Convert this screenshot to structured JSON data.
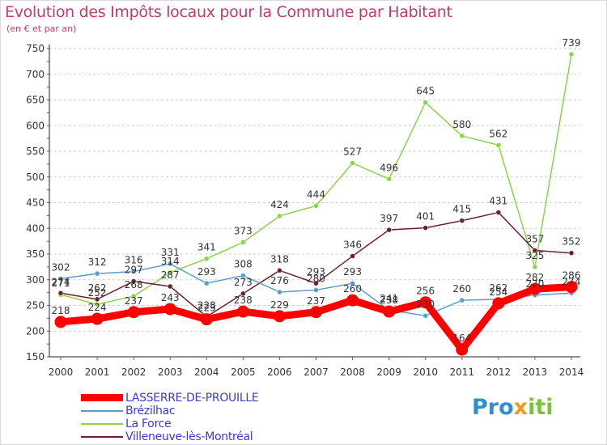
{
  "chart_data": {
    "type": "line",
    "title": "Evolution des Impôts locaux pour la Commune par Habitant",
    "subtitle": "(en € et par an)",
    "xlabel": "",
    "ylabel": "",
    "x": [
      "2000",
      "2001",
      "2002",
      "2003",
      "2004",
      "2005",
      "2006",
      "2007",
      "2008",
      "2009",
      "2010",
      "2011",
      "2012",
      "2013",
      "2014"
    ],
    "yticks": [
      "150",
      "200",
      "250",
      "300",
      "350",
      "400",
      "450",
      "500",
      "550",
      "600",
      "650",
      "700",
      "750"
    ],
    "ylim": [
      150,
      750
    ],
    "grid": "horizontal dashed",
    "legend_position": "bottom-left",
    "series": [
      {
        "name": "LASSERRE-DE-PROUILLE",
        "color": "#ff0000",
        "values": [
          218,
          224,
          237,
          243,
          223,
          238,
          229,
          237,
          260,
          238,
          256,
          164,
          254,
          282,
          286
        ],
        "labels": [
          "218",
          "224",
          "237",
          "243",
          "223",
          "238",
          "229",
          "237",
          "260",
          "238",
          "256",
          "164",
          "254",
          "282",
          "286"
        ]
      },
      {
        "name": "Brézilhac",
        "color": "#5b9bd0",
        "values": [
          302,
          312,
          316,
          331,
          293,
          308,
          276,
          280,
          293,
          241,
          230,
          260,
          262,
          270,
          274
        ],
        "labels": [
          "302",
          "312",
          "316",
          "331",
          "293",
          "308",
          "276",
          "280",
          "293",
          "241",
          "230",
          "260",
          "262",
          "270",
          "274"
        ]
      },
      {
        "name": "La Force",
        "color": "#8ad44a",
        "values": [
          271,
          252,
          268,
          314,
          341,
          373,
          424,
          444,
          527,
          496,
          645,
          580,
          562,
          325,
          739
        ],
        "labels": [
          "271",
          "252",
          "268",
          "314",
          "341",
          "373",
          "424",
          "444",
          "527",
          "496",
          "645",
          "580",
          "562",
          "325",
          "739"
        ]
      },
      {
        "name": "Villeneuve-lès-Montréal",
        "color": "#6e1f2c",
        "values": [
          274,
          262,
          297,
          287,
          228,
          273,
          318,
          293,
          346,
          397,
          401,
          415,
          431,
          357,
          352
        ],
        "labels": [
          "274",
          "262",
          "297",
          "287",
          "228",
          "273",
          "318",
          "293",
          "346",
          "397",
          "401",
          "415",
          "431",
          "357",
          "352"
        ]
      }
    ]
  },
  "logo": {
    "text_parts": [
      "Pro",
      "x",
      "iti"
    ],
    "colors": [
      "#2f8fcf",
      "#f29a1e",
      "#7cc242"
    ]
  }
}
